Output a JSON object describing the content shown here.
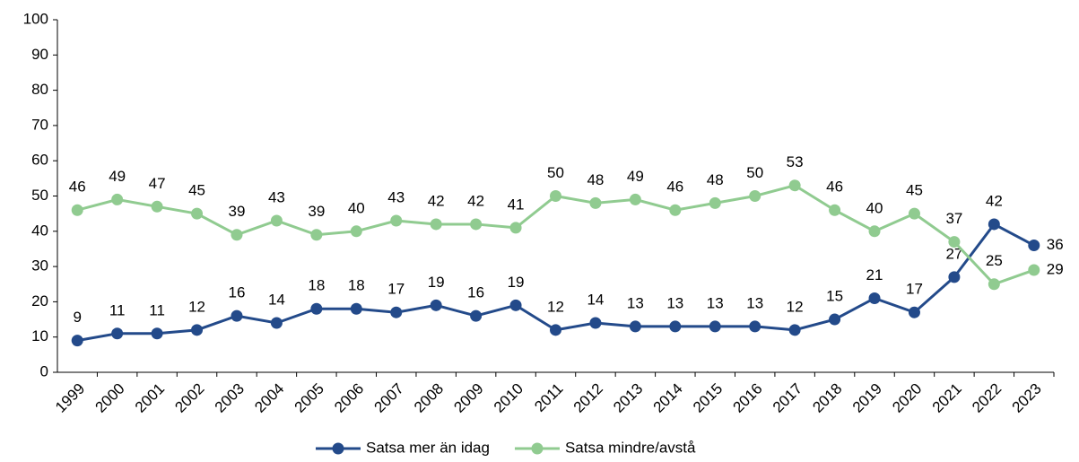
{
  "chart_data": {
    "type": "line",
    "x": [
      "1999",
      "2000",
      "2001",
      "2002",
      "2003",
      "2004",
      "2005",
      "2006",
      "2007",
      "2008",
      "2009",
      "2010",
      "2011",
      "2012",
      "2013",
      "2014",
      "2015",
      "2016",
      "2017",
      "2018",
      "2019",
      "2020",
      "2021",
      "2022",
      "2023"
    ],
    "series": [
      {
        "name": "Satsa mer än idag",
        "color": "#234a8a",
        "values": [
          9,
          11,
          11,
          12,
          16,
          14,
          18,
          18,
          17,
          19,
          16,
          19,
          12,
          14,
          13,
          13,
          13,
          13,
          12,
          15,
          21,
          17,
          27,
          42,
          36
        ]
      },
      {
        "name": "Satsa mindre/avstå",
        "color": "#90cb90",
        "values": [
          46,
          49,
          47,
          45,
          39,
          43,
          39,
          40,
          43,
          42,
          42,
          41,
          50,
          48,
          49,
          46,
          48,
          50,
          53,
          46,
          40,
          45,
          37,
          25,
          29
        ]
      }
    ],
    "ylim": [
      0,
      100
    ],
    "yticks": [
      0,
      10,
      20,
      30,
      40,
      50,
      60,
      70,
      80,
      90,
      100
    ],
    "legend": "bottom"
  }
}
